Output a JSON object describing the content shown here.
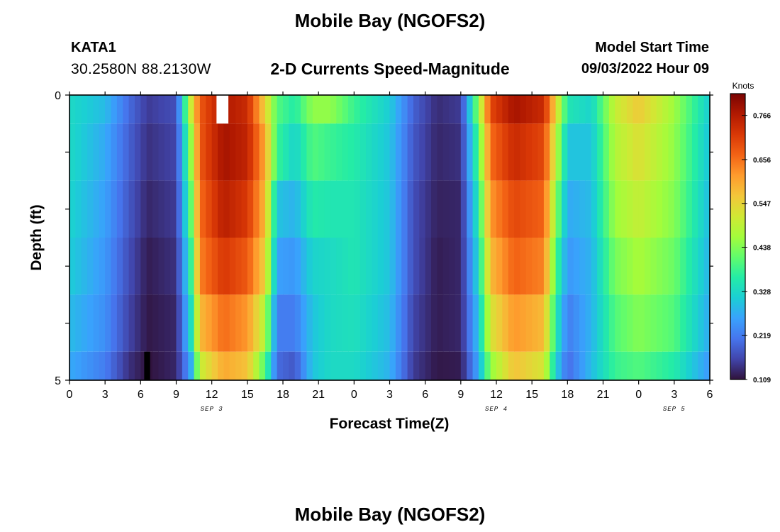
{
  "header": {
    "title": "Mobile Bay (NGOFS2)",
    "station_id": "KATA1",
    "station_coords": "30.2580N  88.2130W",
    "product": "2-D Currents Speed-Magnitude",
    "model_start_label": "Model Start Time",
    "model_start_value": "09/03/2022 Hour 09"
  },
  "footer": {
    "title": "Mobile Bay (NGOFS2)"
  },
  "chart_data": {
    "type": "heatmap",
    "title": "2-D Currents Speed-Magnitude",
    "xlabel": "Forecast Time(Z)",
    "ylabel": "Depth (ft)",
    "x_range_hours": [
      0,
      54
    ],
    "x_tick_labels": [
      "0",
      "3",
      "6",
      "9",
      "12",
      "15",
      "18",
      "21",
      "0",
      "3",
      "6",
      "9",
      "12",
      "15",
      "18",
      "21",
      "0",
      "3",
      "6"
    ],
    "date_labels": [
      {
        "text": "SEP 3",
        "hour": 12
      },
      {
        "text": "SEP 4",
        "hour": 36
      },
      {
        "text": "SEP 5",
        "hour": 51
      }
    ],
    "y_range": [
      0,
      5
    ],
    "y_tick_labels": [
      "0",
      "5"
    ],
    "colorbar": {
      "label": "Knots",
      "min": 0.109,
      "max": 0.82,
      "ticks": [
        "0.109",
        "0.219",
        "0.328",
        "0.438",
        "0.547",
        "0.656",
        "0.766"
      ],
      "colormap": [
        "#30123b",
        "#4145ab",
        "#4675ed",
        "#39a2fc",
        "#1bcfd4",
        "#24eca6",
        "#61fc6c",
        "#a4fc3b",
        "#d1e834",
        "#f3c63a",
        "#fe9b2d",
        "#f36315",
        "#d93806",
        "#b11901",
        "#7a0403"
      ]
    },
    "layers": [
      {
        "depth_top": 0,
        "depth_bottom": 0.5
      },
      {
        "depth_top": 0.5,
        "depth_bottom": 1.5
      },
      {
        "depth_top": 1.5,
        "depth_bottom": 2.5
      },
      {
        "depth_top": 2.5,
        "depth_bottom": 3.5
      },
      {
        "depth_top": 3.5,
        "depth_bottom": 4.5
      },
      {
        "depth_top": 4.5,
        "depth_bottom": 5
      }
    ],
    "speed_keyframes_knots": [
      {
        "hour": 0,
        "speed": [
          0.33,
          0.33,
          0.32,
          0.31,
          0.29,
          0.27
        ]
      },
      {
        "hour": 3,
        "speed": [
          0.29,
          0.27,
          0.26,
          0.25,
          0.24,
          0.22
        ]
      },
      {
        "hour": 5,
        "speed": [
          0.2,
          0.19,
          0.18,
          0.17,
          0.16,
          0.14
        ]
      },
      {
        "hour": 6.6,
        "speed": [
          0.15,
          0.14,
          0.13,
          0.12,
          0.115,
          0.109
        ]
      },
      {
        "hour": 9,
        "speed": [
          0.17,
          0.16,
          0.15,
          0.14,
          0.13,
          0.13
        ]
      },
      {
        "hour": 10.2,
        "speed": [
          0.5,
          0.44,
          0.4,
          0.36,
          0.32,
          0.26
        ]
      },
      {
        "hour": 11,
        "speed": [
          0.68,
          0.68,
          0.66,
          0.64,
          0.58,
          0.5
        ]
      },
      {
        "hour": 13,
        "speed": [
          0.77,
          0.78,
          0.76,
          0.72,
          0.66,
          0.6
        ]
      },
      {
        "hour": 15,
        "speed": [
          0.74,
          0.75,
          0.72,
          0.68,
          0.62,
          0.57
        ]
      },
      {
        "hour": 16.5,
        "speed": [
          0.55,
          0.6,
          0.58,
          0.55,
          0.48,
          0.4
        ]
      },
      {
        "hour": 17.5,
        "speed": [
          0.4,
          0.38,
          0.3,
          0.26,
          0.22,
          0.2
        ]
      },
      {
        "hour": 19,
        "speed": [
          0.36,
          0.32,
          0.28,
          0.25,
          0.22,
          0.18
        ]
      },
      {
        "hour": 20.5,
        "speed": [
          0.45,
          0.4,
          0.36,
          0.32,
          0.3,
          0.3
        ]
      },
      {
        "hour": 22,
        "speed": [
          0.45,
          0.38,
          0.35,
          0.33,
          0.33,
          0.33
        ]
      },
      {
        "hour": 24,
        "speed": [
          0.38,
          0.36,
          0.35,
          0.35,
          0.34,
          0.33
        ]
      },
      {
        "hour": 27,
        "speed": [
          0.31,
          0.3,
          0.3,
          0.3,
          0.29,
          0.28
        ]
      },
      {
        "hour": 29,
        "speed": [
          0.19,
          0.18,
          0.17,
          0.17,
          0.16,
          0.15
        ]
      },
      {
        "hour": 31,
        "speed": [
          0.135,
          0.13,
          0.125,
          0.12,
          0.12,
          0.115
        ]
      },
      {
        "hour": 33,
        "speed": [
          0.15,
          0.14,
          0.13,
          0.13,
          0.13,
          0.12
        ]
      },
      {
        "hour": 34.5,
        "speed": [
          0.45,
          0.4,
          0.36,
          0.33,
          0.3,
          0.27
        ]
      },
      {
        "hour": 35.5,
        "speed": [
          0.7,
          0.66,
          0.62,
          0.58,
          0.52,
          0.45
        ]
      },
      {
        "hour": 37.5,
        "speed": [
          0.78,
          0.74,
          0.7,
          0.67,
          0.62,
          0.57
        ]
      },
      {
        "hour": 40,
        "speed": [
          0.74,
          0.7,
          0.67,
          0.64,
          0.58,
          0.52
        ]
      },
      {
        "hour": 41,
        "speed": [
          0.55,
          0.5,
          0.45,
          0.4,
          0.36,
          0.32
        ]
      },
      {
        "hour": 42,
        "speed": [
          0.35,
          0.3,
          0.27,
          0.25,
          0.22,
          0.2
        ]
      },
      {
        "hour": 44,
        "speed": [
          0.32,
          0.3,
          0.29,
          0.28,
          0.28,
          0.29
        ]
      },
      {
        "hour": 46,
        "speed": [
          0.5,
          0.48,
          0.46,
          0.43,
          0.4,
          0.38
        ]
      },
      {
        "hour": 48,
        "speed": [
          0.56,
          0.53,
          0.5,
          0.47,
          0.44,
          0.4
        ]
      },
      {
        "hour": 51,
        "speed": [
          0.46,
          0.45,
          0.44,
          0.42,
          0.4,
          0.36
        ]
      },
      {
        "hour": 54,
        "speed": [
          0.31,
          0.3,
          0.29,
          0.28,
          0.27,
          0.25
        ]
      }
    ],
    "markers": [
      {
        "color": "#ffffff",
        "hour_start": 12.4,
        "hour_end": 13.4,
        "depth_top": 0,
        "depth_bottom": 0.5
      },
      {
        "color": "#000000",
        "hour_start": 6.3,
        "hour_end": 6.8,
        "depth_top": 4.5,
        "depth_bottom": 5
      }
    ]
  }
}
